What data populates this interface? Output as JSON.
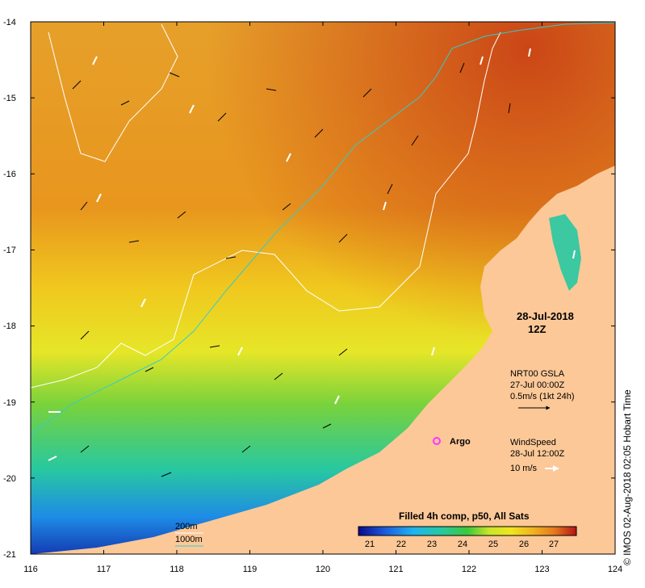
{
  "map": {
    "lon_ticks": [
      "116",
      "117",
      "118",
      "119",
      "120",
      "121",
      "122",
      "123",
      "124"
    ],
    "lat_ticks": [
      "-14",
      "-15",
      "-16",
      "-17",
      "-18",
      "-19",
      "-20",
      "-21"
    ],
    "date_line1": "28-Jul-2018",
    "date_line2": "12Z",
    "gsla_line1": "NRT00 GSLA",
    "gsla_line2": "27-Jul 00:00Z",
    "gsla_line3": "0.5m/s (1kt 24h)",
    "wind_line1": "WindSpeed",
    "wind_line2": "28-Jul 12:00Z",
    "wind_line3": "10 m/s",
    "argo_label": "Argo",
    "colorbar_title": "Filled 4h comp, p50, All Sats",
    "colorbar_ticks": [
      "21",
      "22",
      "23",
      "24",
      "25",
      "26",
      "27"
    ],
    "contour_legend": [
      "200m",
      "1000m"
    ],
    "credit": "© IMOS 02-Aug-2018 02:05 Hobart Time",
    "colors": {
      "land": "#fcc898",
      "argo": "#ff33ff",
      "contour_200": "#ffffff",
      "contour_1000": "#33cccc"
    }
  }
}
